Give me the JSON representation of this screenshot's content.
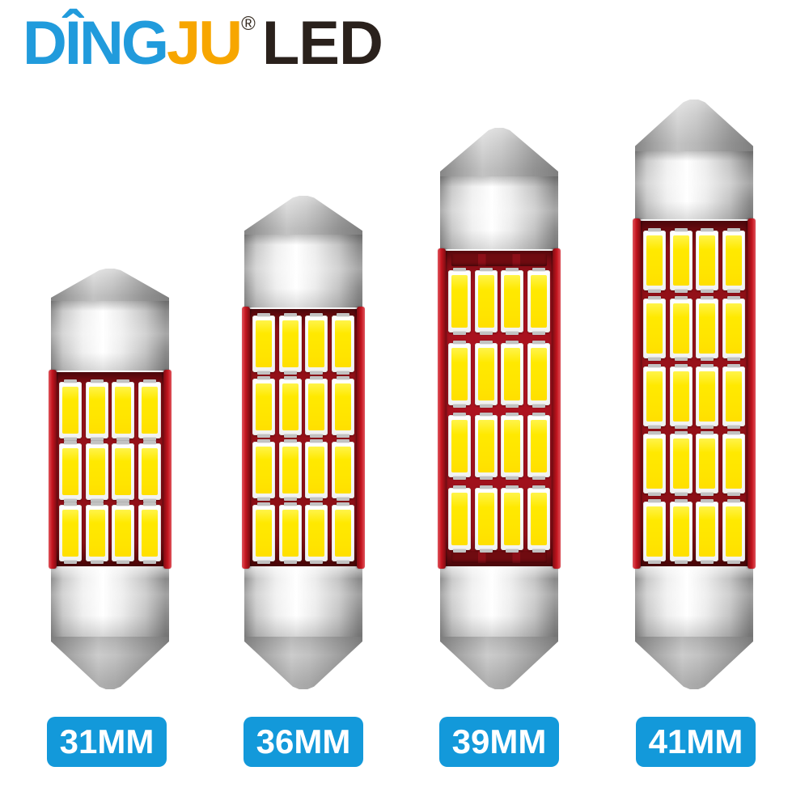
{
  "brand": {
    "word_blue": "DÎNG",
    "word_orange": "JU",
    "registered_mark": "®",
    "word_dark": "LED"
  },
  "bulbs": [
    {
      "size_label": "31MM",
      "led_rows": 3,
      "led_cols": 4,
      "total_leds": 12
    },
    {
      "size_label": "36MM",
      "led_rows": 4,
      "led_cols": 4,
      "total_leds": 16
    },
    {
      "size_label": "39MM",
      "led_rows": 4,
      "led_cols": 4,
      "total_leds": 16
    },
    {
      "size_label": "41MM",
      "led_rows": 5,
      "led_cols": 4,
      "total_leds": 20
    }
  ],
  "colors": {
    "brand_blue": "#219bdc",
    "brand_orange": "#f7a600",
    "brand_dark": "#2a211c",
    "label_background": "#1399da",
    "label_text": "#ffffff",
    "pcb_red": "#99121a",
    "pcb_red_bright": "#b01320",
    "rail_red": "#c4151f",
    "led_yellow": "#ffe800",
    "led_frame_white": "#ffffff",
    "metal_silver": "#d9d9d9"
  }
}
